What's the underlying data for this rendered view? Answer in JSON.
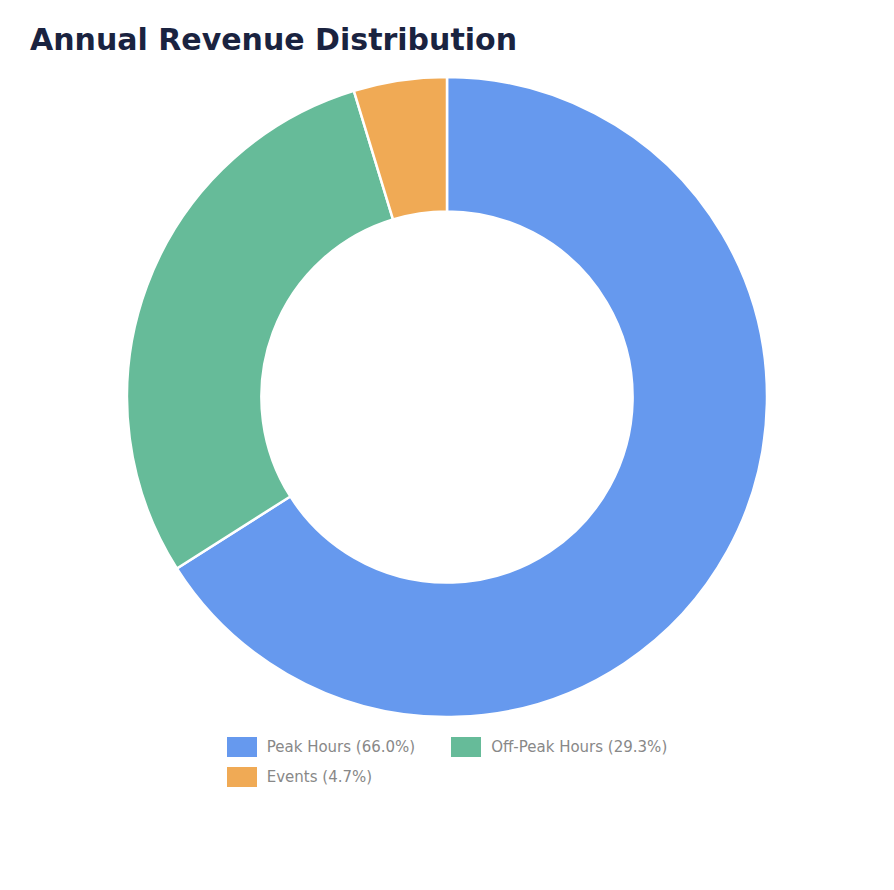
{
  "chart_data": {
    "type": "pie",
    "title": "Annual Revenue Distribution",
    "categories": [
      "Peak Hours (66.0%)",
      "Off-Peak Hours (29.3%)",
      "Events (4.7%)"
    ],
    "values": [
      66.0,
      29.3,
      4.7
    ],
    "colors": [
      "#6699EE",
      "#66BB99",
      "#F0AA55"
    ],
    "legend": "bottom"
  }
}
